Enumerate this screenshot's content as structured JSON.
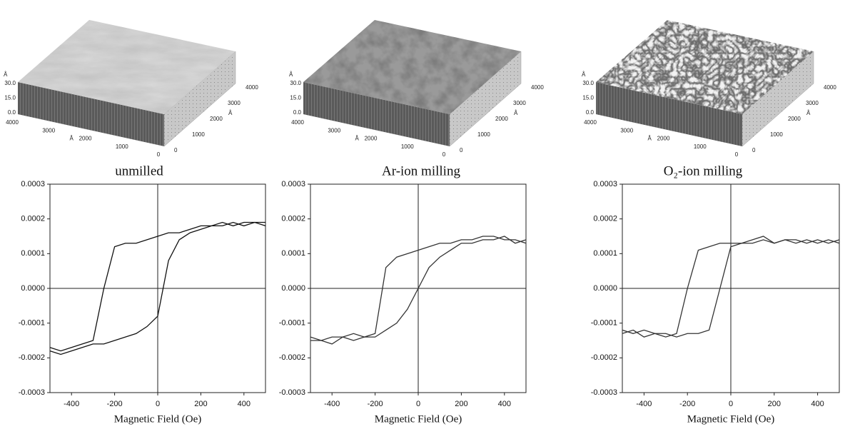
{
  "afm_panels": [
    {
      "caption": "unmilled",
      "unit": "Å",
      "zticks": [
        "30.0",
        "15.0",
        "0.0"
      ],
      "xticks": [
        "4000",
        "3000",
        "2000",
        "1000",
        "0"
      ],
      "yticks": [
        "0",
        "1000",
        "2000",
        "3000",
        "4000"
      ]
    },
    {
      "caption": "Ar-ion milling",
      "unit": "Å",
      "zticks": [
        "30.0",
        "15.0",
        "0.0"
      ],
      "xticks": [
        "4000",
        "3000",
        "2000",
        "1000",
        "0"
      ],
      "yticks": [
        "0",
        "1000",
        "2000",
        "3000",
        "4000"
      ]
    },
    {
      "caption": "O₂-ion milling",
      "unit": "Å",
      "zticks": [
        "30.0",
        "15.0",
        "0.0"
      ],
      "xticks": [
        "4000",
        "3000",
        "2000",
        "1000",
        "0"
      ],
      "yticks": [
        "0",
        "1000",
        "2000",
        "3000",
        "4000"
      ]
    }
  ],
  "chart_data": [
    {
      "type": "line",
      "xlabel": "Magnetic Field (Oe)",
      "x": [
        -500,
        -450,
        -400,
        -350,
        -300,
        -250,
        -200,
        -150,
        -100,
        -50,
        0,
        50,
        100,
        150,
        200,
        250,
        300,
        350,
        400,
        450,
        500
      ],
      "series": [
        {
          "color": "#111111",
          "values": [
            -0.00017,
            -0.00018,
            -0.00017,
            -0.00016,
            -0.00015,
            0.0,
            0.00012,
            0.00013,
            0.00013,
            0.00014,
            0.00015,
            0.00016,
            0.00016,
            0.00017,
            0.00018,
            0.00018,
            0.00019,
            0.00018,
            0.00019,
            0.00019,
            0.00019
          ]
        },
        {
          "color": "#111111",
          "values": [
            -0.00018,
            -0.00019,
            -0.00018,
            -0.00017,
            -0.00016,
            -0.00016,
            -0.00015,
            -0.00014,
            -0.00013,
            -0.00011,
            -8e-05,
            8e-05,
            0.00014,
            0.00016,
            0.00017,
            0.00018,
            0.00018,
            0.00019,
            0.00018,
            0.00019,
            0.00018
          ]
        }
      ],
      "xlim": [
        -500,
        500
      ],
      "xticks": [
        -400,
        -200,
        0,
        200,
        400
      ],
      "ylim": [
        -0.0003,
        0.0003
      ],
      "yticks": [
        -0.0003,
        -0.0002,
        -0.0001,
        {
          "value": 0,
          "label": "0.0000"
        },
        0.0001,
        0.0002,
        0.0003
      ]
    },
    {
      "type": "line",
      "xlabel": "Magnetic Field (Oe)",
      "x": [
        -500,
        -450,
        -400,
        -350,
        -300,
        -250,
        -200,
        -150,
        -100,
        -50,
        0,
        50,
        100,
        150,
        200,
        250,
        300,
        350,
        400,
        450,
        500
      ],
      "series": [
        {
          "color": "#333333",
          "values": [
            -0.00014,
            -0.00015,
            -0.00014,
            -0.00014,
            -0.00013,
            -0.00014,
            -0.00013,
            6e-05,
            9e-05,
            0.0001,
            0.00011,
            0.00012,
            0.00013,
            0.00013,
            0.00014,
            0.00014,
            0.00015,
            0.00015,
            0.00014,
            0.00014,
            0.00013
          ]
        },
        {
          "color": "#333333",
          "values": [
            -0.00015,
            -0.00015,
            -0.00016,
            -0.00014,
            -0.00015,
            -0.00014,
            -0.00014,
            -0.00012,
            -0.0001,
            -6e-05,
            0.0,
            6e-05,
            9e-05,
            0.00011,
            0.00013,
            0.00013,
            0.00014,
            0.00014,
            0.00015,
            0.00013,
            0.00014
          ]
        }
      ],
      "xlim": [
        -500,
        500
      ],
      "xticks": [
        -400,
        -200,
        0,
        200,
        400
      ],
      "ylim": [
        -0.0003,
        0.0003
      ],
      "yticks": [
        -0.0003,
        -0.0002,
        -0.0001,
        {
          "value": 0,
          "label": "0.0000"
        },
        0.0001,
        0.0002,
        0.0003
      ]
    },
    {
      "type": "line",
      "xlabel": "Magnetic Field (Oe)",
      "x": [
        -500,
        -450,
        -400,
        -350,
        -300,
        -250,
        -200,
        -150,
        -100,
        -50,
        0,
        50,
        100,
        150,
        200,
        250,
        300,
        350,
        400,
        450,
        500
      ],
      "series": [
        {
          "color": "#333333",
          "values": [
            -0.00012,
            -0.00013,
            -0.00012,
            -0.00013,
            -0.00014,
            -0.00013,
            0.0,
            0.00011,
            0.00012,
            0.00013,
            0.00013,
            0.00013,
            0.00014,
            0.00015,
            0.00013,
            0.00014,
            0.00013,
            0.00014,
            0.00013,
            0.00014,
            0.00013
          ]
        },
        {
          "color": "#333333",
          "values": [
            -0.00013,
            -0.00012,
            -0.00014,
            -0.00013,
            -0.00013,
            -0.00014,
            -0.00013,
            -0.00013,
            -0.00012,
            0.0,
            0.00012,
            0.00013,
            0.00013,
            0.00014,
            0.00013,
            0.00014,
            0.00014,
            0.00013,
            0.00014,
            0.00013,
            0.00014
          ]
        }
      ],
      "xlim": [
        -500,
        500
      ],
      "xticks": [
        -400,
        -200,
        0,
        200,
        400
      ],
      "ylim": [
        -0.0003,
        0.0003
      ],
      "yticks": [
        -0.0003,
        -0.0002,
        -0.0001,
        {
          "value": 0,
          "label": "0.0000"
        },
        0.0001,
        0.0002,
        0.0003
      ]
    }
  ]
}
